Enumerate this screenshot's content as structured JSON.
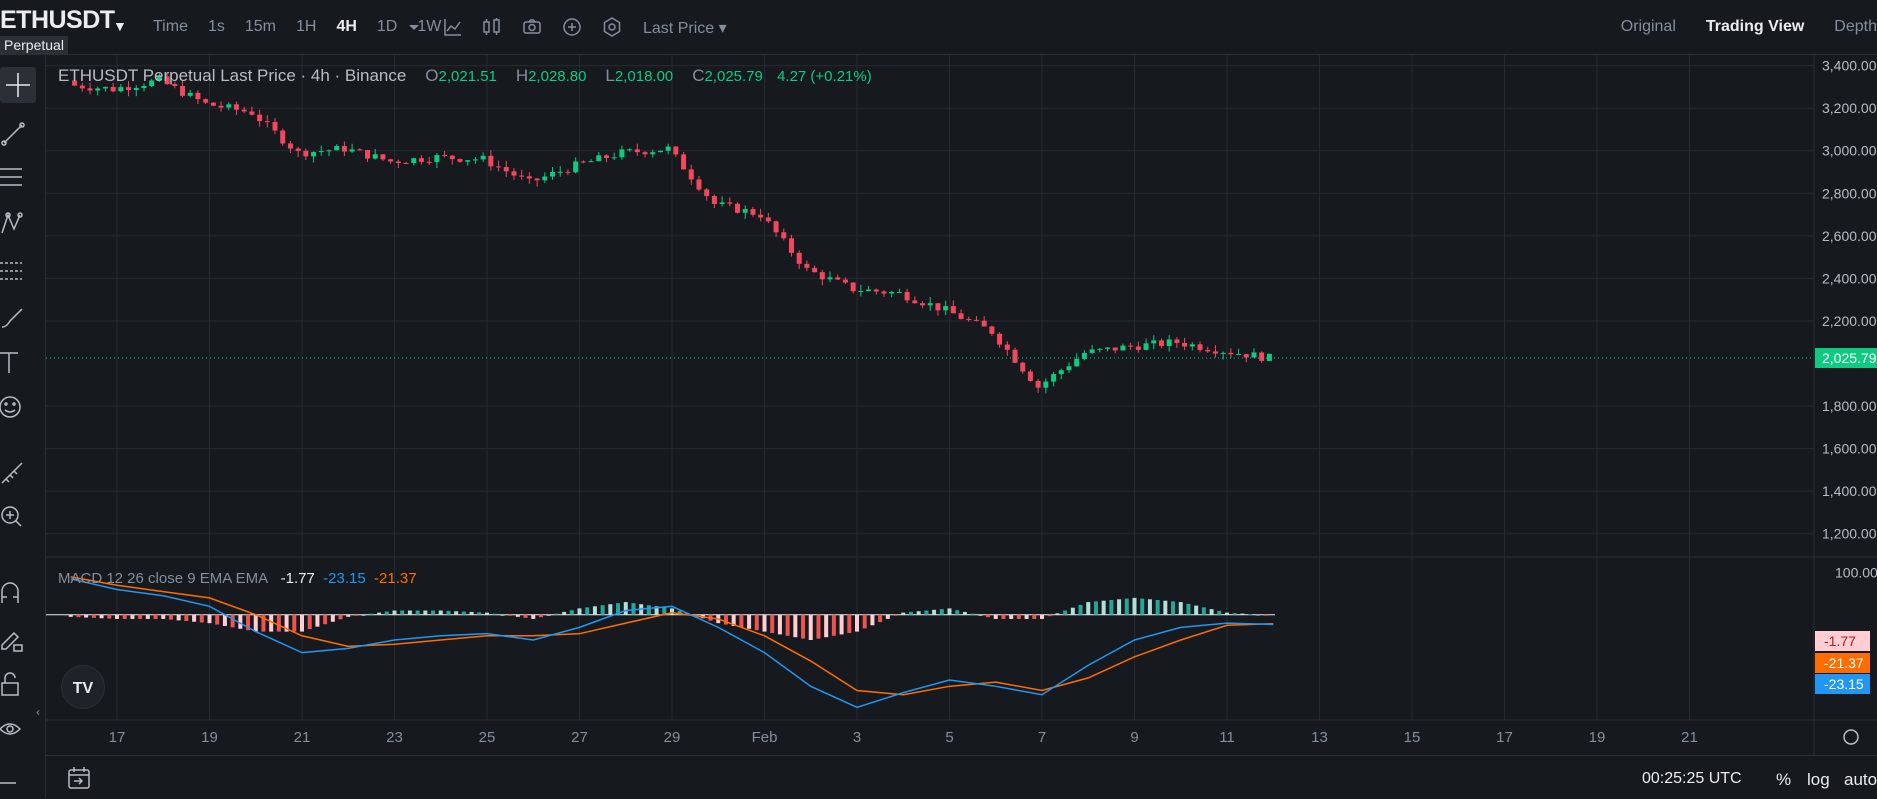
{
  "header": {
    "symbol": "ETHUSDT",
    "contract_tag": "Perpetual",
    "intervals": [
      "Time",
      "1s",
      "15m",
      "1H",
      "4H",
      "1D",
      "1W"
    ],
    "active_interval": "4H",
    "price_type": "Last Price",
    "views": [
      "Original",
      "Trading View",
      "Depth"
    ],
    "active_view": "Trading View"
  },
  "legend": {
    "title": "ETHUSDT Perpetual Last Price · 4h · Binance",
    "open_label": "O",
    "open": "2,021.51",
    "high_label": "H",
    "high": "2,028.80",
    "low_label": "L",
    "low": "2,018.00",
    "close_label": "C",
    "close": "2,025.79",
    "change": "4.27 (+0.21%)"
  },
  "macd_legend": {
    "label": "MACD 12 26 close 9 EMA EMA",
    "histogram": "-1.77",
    "macd": "-23.15",
    "signal": "-21.37"
  },
  "price_axis": {
    "ticks": [
      "3,400.00",
      "3,200.00",
      "3,000.00",
      "2,800.00",
      "2,600.00",
      "2,400.00",
      "2,200.00",
      "1,800.00",
      "1,600.00",
      "1,400.00",
      "1,200.00"
    ],
    "current_price": "2,025.79",
    "macd_tick": "100.00"
  },
  "time_axis": {
    "ticks": [
      "17",
      "19",
      "21",
      "23",
      "25",
      "27",
      "29",
      "Feb",
      "3",
      "5",
      "7",
      "9",
      "11",
      "13",
      "15",
      "17",
      "19",
      "21"
    ]
  },
  "bottom": {
    "clock": "00:25:25 UTC",
    "percent": "%",
    "log": "log",
    "auto": "auto"
  },
  "colors": {
    "up": "#0ecb81",
    "down": "#f6465d",
    "macd_line": "#2196f3",
    "signal_line": "#ff6d00",
    "background": "#161a1e",
    "grid": "#262a30"
  },
  "chart_data": {
    "type": "candlestick",
    "x": [
      "Jan 16",
      "Jan 17",
      "Jan 18",
      "Jan 19",
      "Jan 20",
      "Jan 21",
      "Jan 22",
      "Jan 23",
      "Jan 24",
      "Jan 25",
      "Jan 26",
      "Jan 27",
      "Jan 28",
      "Jan 29",
      "Jan 30",
      "Jan 31",
      "Feb 1",
      "Feb 2",
      "Feb 3",
      "Feb 4",
      "Feb 5",
      "Feb 6",
      "Feb 7",
      "Feb 8",
      "Feb 9",
      "Feb 10",
      "Feb 11"
    ],
    "close": [
      3310,
      3290,
      3330,
      3220,
      3180,
      2990,
      3010,
      2950,
      2970,
      2960,
      2850,
      2930,
      2990,
      3010,
      2750,
      2700,
      2440,
      2350,
      2330,
      2250,
      2150,
      1890,
      2050,
      2080,
      2100,
      2060,
      2025.79
    ],
    "ylim": [
      1100,
      3450
    ],
    "macd": {
      "macd": [
        85,
        60,
        45,
        20,
        -40,
        -90,
        -80,
        -60,
        -50,
        -45,
        -60,
        -30,
        10,
        20,
        -30,
        -90,
        -170,
        -220,
        -185,
        -155,
        -170,
        -190,
        -120,
        -60,
        -30,
        -20,
        -23.15
      ],
      "signal": [
        90,
        70,
        55,
        40,
        0,
        -50,
        -75,
        -70,
        -60,
        -50,
        -50,
        -45,
        -20,
        5,
        -10,
        -50,
        -110,
        -180,
        -190,
        -170,
        -160,
        -180,
        -150,
        -100,
        -60,
        -25,
        -21.37
      ],
      "histogram": [
        -5,
        -10,
        -10,
        -20,
        -40,
        -40,
        -5,
        10,
        10,
        5,
        -10,
        15,
        30,
        15,
        -20,
        -40,
        -60,
        -40,
        5,
        15,
        -10,
        -10,
        30,
        40,
        30,
        5,
        -1.77
      ]
    }
  }
}
